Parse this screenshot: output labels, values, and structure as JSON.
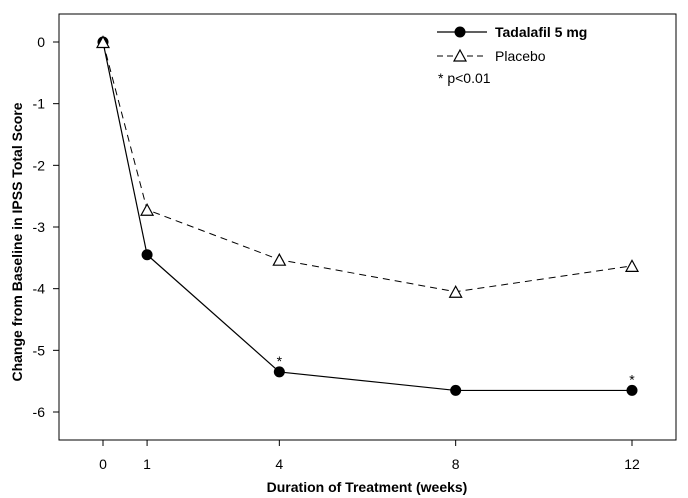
{
  "chart_data": {
    "type": "line",
    "xlabel": "Duration of Treatment (weeks)",
    "ylabel": "Change from Baseline in IPSS Total Score",
    "x": [
      0,
      1,
      4,
      8,
      12
    ],
    "xticks": [
      "0",
      "1",
      "4",
      "8",
      "12"
    ],
    "yticks": [
      "0",
      "-1",
      "-2",
      "-3",
      "-4",
      "-5",
      "-6"
    ],
    "xlim": [
      -1,
      13
    ],
    "ylim": [
      -6.5,
      0.2
    ],
    "grid": false,
    "legend_position": "top-right",
    "series": [
      {
        "name": "Tadalafil 5 mg",
        "values": [
          0,
          -3.45,
          -5.35,
          -5.65,
          -5.65
        ],
        "marker": "filled-circle",
        "line": "solid",
        "color": "#000000",
        "significant": [
          false,
          false,
          true,
          false,
          true
        ]
      },
      {
        "name": "Placebo",
        "values": [
          0,
          -2.72,
          -3.53,
          -4.05,
          -3.63
        ],
        "marker": "open-triangle",
        "line": "dashed",
        "color": "#000000"
      }
    ],
    "annotation": {
      "symbol": "*",
      "note": "* p<0.01"
    }
  }
}
